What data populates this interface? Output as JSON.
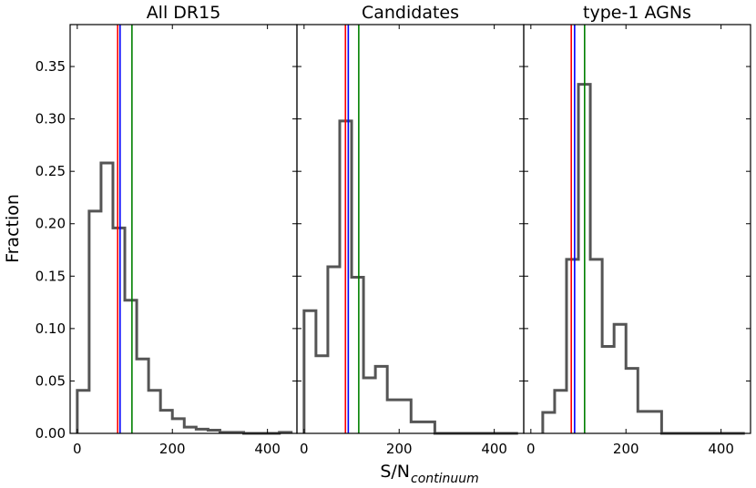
{
  "chart_data": {
    "type": "histogram",
    "ylabel": "Fraction",
    "xlabel": {
      "main": "S/N",
      "subscript": "continuum"
    },
    "ylim": [
      0,
      0.39
    ],
    "yticks": [
      0.0,
      0.05,
      0.1,
      0.15,
      0.2,
      0.25,
      0.3,
      0.35
    ],
    "ytick_labels": [
      "0.00",
      "0.05",
      "0.10",
      "0.15",
      "0.20",
      "0.25",
      "0.30",
      "0.35"
    ],
    "xlim": [
      -15,
      462
    ],
    "xticks": [
      0,
      200,
      400
    ],
    "xtick_labels": [
      "0",
      "200",
      "400"
    ],
    "vline_colors": {
      "red": "#ff0000",
      "blue": "#0000ff",
      "green": "#008000"
    },
    "hist_color": "#555555",
    "panels": [
      {
        "title": "All DR15",
        "bin_edges": [
          0,
          25,
          50,
          75,
          100,
          125,
          150,
          175,
          200,
          225,
          250,
          275,
          300,
          325,
          350,
          375,
          400,
          425,
          450
        ],
        "values": [
          0.041,
          0.212,
          0.258,
          0.196,
          0.127,
          0.071,
          0.041,
          0.022,
          0.014,
          0.006,
          0.004,
          0.003,
          0.001,
          0.001,
          0.0,
          0.0,
          0.0,
          0.001
        ],
        "vlines": [
          {
            "color": "red",
            "x": 85
          },
          {
            "color": "blue",
            "x": 90
          },
          {
            "color": "green",
            "x": 115
          }
        ]
      },
      {
        "title": "Candidates",
        "bin_edges": [
          0,
          25,
          50,
          75,
          100,
          125,
          150,
          175,
          225,
          275,
          325,
          450
        ],
        "values": [
          0.117,
          0.074,
          0.159,
          0.298,
          0.149,
          0.053,
          0.064,
          0.032,
          0.011,
          0.0,
          0.0
        ],
        "vlines": [
          {
            "color": "red",
            "x": 87
          },
          {
            "color": "blue",
            "x": 93
          },
          {
            "color": "green",
            "x": 115
          }
        ]
      },
      {
        "title": "type-1 AGNs",
        "bin_edges": [
          25,
          50,
          75,
          100,
          125,
          150,
          175,
          200,
          225,
          275,
          450
        ],
        "values": [
          0.02,
          0.041,
          0.166,
          0.333,
          0.166,
          0.083,
          0.104,
          0.062,
          0.021,
          0.0
        ],
        "vlines": [
          {
            "color": "red",
            "x": 85
          },
          {
            "color": "blue",
            "x": 92
          },
          {
            "color": "green",
            "x": 113
          }
        ]
      }
    ]
  }
}
